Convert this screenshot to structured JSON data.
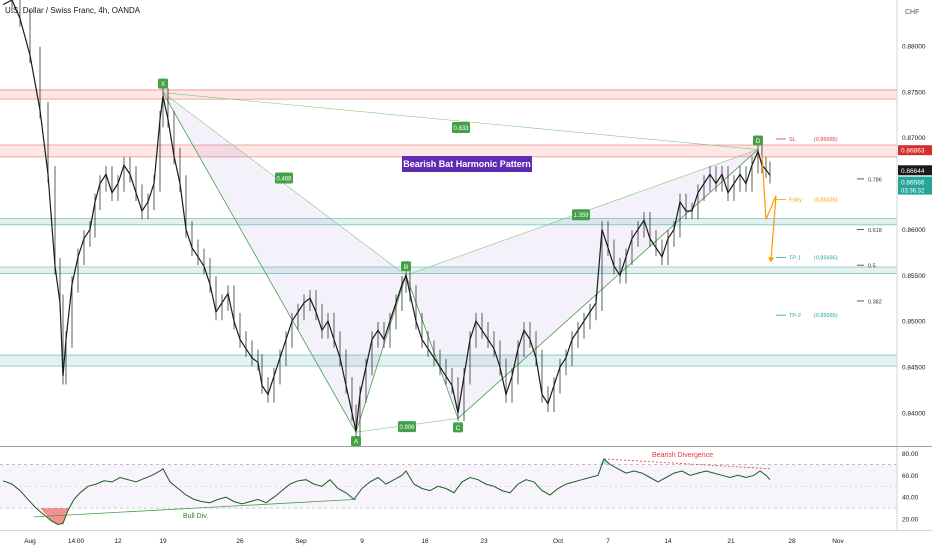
{
  "chart_data": {
    "type": "candlestick",
    "title": "U.S. Dollar / Swiss Franc, 4h, OANDA",
    "currency": "CHF",
    "pattern_title": "Bearish Bat Harmonic Pattern",
    "price_axis": {
      "ylim": [
        0.8365,
        0.885
      ],
      "ticks": [
        "0.88000",
        "0.87500",
        "0.87000",
        "0.86500",
        "0.86000",
        "0.85500",
        "0.85000",
        "0.84500",
        "0.84000"
      ],
      "tick_values": [
        0.88,
        0.875,
        0.87,
        0.865,
        0.86,
        0.855,
        0.85,
        0.845,
        0.84
      ],
      "last_price": "0.86586",
      "last_price_timer": "03:36:32",
      "price_tag": "0.86644",
      "sl_tag": "0.86863"
    },
    "time_axis": {
      "ticks": [
        "Aug",
        "14:00",
        "12",
        "19",
        "26",
        "Sep",
        "9",
        "16",
        "23",
        "Oct",
        "7",
        "14",
        "21",
        "28",
        "Nov"
      ],
      "tick_t": [
        30,
        76,
        118,
        163,
        240,
        301,
        362,
        425,
        484,
        558,
        608,
        668,
        731,
        792,
        838
      ]
    },
    "pattern_points": [
      {
        "label": "X",
        "t": 163,
        "price": 0.8749
      },
      {
        "label": "A",
        "t": 356,
        "price": 0.8379
      },
      {
        "label": "B",
        "t": 406,
        "price": 0.855
      },
      {
        "label": "C",
        "t": 458,
        "price": 0.8394
      },
      {
        "label": "D",
        "t": 758,
        "price": 0.8687
      }
    ],
    "ratios": [
      {
        "label": "0.833",
        "t": 461,
        "price": 0.8711
      },
      {
        "label": "0.468",
        "t": 284,
        "price": 0.8656
      },
      {
        "label": "0.906",
        "t": 407,
        "price": 0.8385
      },
      {
        "label": "1.359",
        "t": 581,
        "price": 0.8616
      }
    ],
    "zones": [
      {
        "price_low": 0.8742,
        "price_high": 0.8752,
        "color": "red"
      },
      {
        "price_low": 0.8679,
        "price_high": 0.8692,
        "color": "red"
      },
      {
        "price_low": 0.8605,
        "price_high": 0.8612,
        "color": "teal"
      },
      {
        "price_low": 0.8552,
        "price_high": 0.8559,
        "color": "teal"
      },
      {
        "price_low": 0.8451,
        "price_high": 0.8463,
        "color": "teal"
      }
    ],
    "fib_levels": [
      {
        "label": "0.786",
        "price": 0.8655
      },
      {
        "label": "0.618",
        "price": 0.86
      },
      {
        "label": "0.5",
        "price": 0.8561
      },
      {
        "label": "0.382",
        "price": 0.8522
      }
    ],
    "trade_levels": [
      {
        "label": "SL",
        "value": "(0.86985)",
        "price": 0.86985,
        "color": "#e53935"
      },
      {
        "label": "Entry",
        "value": "(0.86325)",
        "price": 0.86325,
        "color": "#ff9800"
      },
      {
        "label": "TP-1",
        "value": "(0.85695)",
        "price": 0.85695,
        "color": "#26a69a"
      },
      {
        "label": "TP-2",
        "value": "(0.85065)",
        "price": 0.85065,
        "color": "#26a69a"
      }
    ],
    "price_path": [
      [
        3,
        0.8845
      ],
      [
        12,
        0.885
      ],
      [
        20,
        0.883
      ],
      [
        30,
        0.879
      ],
      [
        40,
        0.873
      ],
      [
        48,
        0.866
      ],
      [
        55,
        0.856
      ],
      [
        60,
        0.852
      ],
      [
        63,
        0.844
      ],
      [
        66,
        0.848
      ],
      [
        72,
        0.854
      ],
      [
        78,
        0.857
      ],
      [
        84,
        0.859
      ],
      [
        90,
        0.86
      ],
      [
        95,
        0.863
      ],
      [
        100,
        0.865
      ],
      [
        106,
        0.866
      ],
      [
        112,
        0.864
      ],
      [
        118,
        0.865
      ],
      [
        124,
        0.867
      ],
      [
        130,
        0.866
      ],
      [
        136,
        0.864
      ],
      [
        142,
        0.862
      ],
      [
        148,
        0.863
      ],
      [
        154,
        0.865
      ],
      [
        160,
        0.872
      ],
      [
        163,
        0.8745
      ],
      [
        168,
        0.872
      ],
      [
        174,
        0.868
      ],
      [
        180,
        0.865
      ],
      [
        186,
        0.86
      ],
      [
        192,
        0.858
      ],
      [
        198,
        0.857
      ],
      [
        204,
        0.856
      ],
      [
        210,
        0.854
      ],
      [
        216,
        0.851
      ],
      [
        222,
        0.852
      ],
      [
        228,
        0.853
      ],
      [
        234,
        0.85
      ],
      [
        240,
        0.848
      ],
      [
        246,
        0.847
      ],
      [
        252,
        0.846
      ],
      [
        258,
        0.8455
      ],
      [
        262,
        0.843
      ],
      [
        268,
        0.842
      ],
      [
        274,
        0.844
      ],
      [
        280,
        0.846
      ],
      [
        286,
        0.848
      ],
      [
        292,
        0.85
      ],
      [
        298,
        0.851
      ],
      [
        304,
        0.852
      ],
      [
        310,
        0.8525
      ],
      [
        316,
        0.851
      ],
      [
        322,
        0.849
      ],
      [
        328,
        0.85
      ],
      [
        334,
        0.848
      ],
      [
        340,
        0.846
      ],
      [
        346,
        0.843
      ],
      [
        352,
        0.84
      ],
      [
        356,
        0.838
      ],
      [
        360,
        0.842
      ],
      [
        366,
        0.845
      ],
      [
        372,
        0.848
      ],
      [
        378,
        0.849
      ],
      [
        384,
        0.848
      ],
      [
        390,
        0.85
      ],
      [
        396,
        0.852
      ],
      [
        402,
        0.854
      ],
      [
        406,
        0.855
      ],
      [
        410,
        0.853
      ],
      [
        416,
        0.85
      ],
      [
        422,
        0.848
      ],
      [
        428,
        0.847
      ],
      [
        434,
        0.846
      ],
      [
        440,
        0.845
      ],
      [
        446,
        0.844
      ],
      [
        452,
        0.843
      ],
      [
        458,
        0.84
      ],
      [
        464,
        0.844
      ],
      [
        470,
        0.848
      ],
      [
        476,
        0.85
      ],
      [
        482,
        0.849
      ],
      [
        488,
        0.848
      ],
      [
        494,
        0.847
      ],
      [
        500,
        0.845
      ],
      [
        506,
        0.842
      ],
      [
        512,
        0.844
      ],
      [
        518,
        0.847
      ],
      [
        524,
        0.849
      ],
      [
        530,
        0.848
      ],
      [
        536,
        0.846
      ],
      [
        542,
        0.842
      ],
      [
        548,
        0.841
      ],
      [
        554,
        0.843
      ],
      [
        560,
        0.845
      ],
      [
        566,
        0.846
      ],
      [
        572,
        0.848
      ],
      [
        578,
        0.849
      ],
      [
        584,
        0.85
      ],
      [
        590,
        0.851
      ],
      [
        596,
        0.852
      ],
      [
        602,
        0.86
      ],
      [
        608,
        0.858
      ],
      [
        614,
        0.856
      ],
      [
        620,
        0.855
      ],
      [
        626,
        0.857
      ],
      [
        632,
        0.859
      ],
      [
        638,
        0.86
      ],
      [
        644,
        0.861
      ],
      [
        650,
        0.859
      ],
      [
        656,
        0.858
      ],
      [
        662,
        0.857
      ],
      [
        668,
        0.859
      ],
      [
        674,
        0.86
      ],
      [
        680,
        0.863
      ],
      [
        686,
        0.862
      ],
      [
        692,
        0.862
      ],
      [
        698,
        0.864
      ],
      [
        704,
        0.865
      ],
      [
        710,
        0.866
      ],
      [
        716,
        0.865
      ],
      [
        722,
        0.866
      ],
      [
        728,
        0.864
      ],
      [
        734,
        0.865
      ],
      [
        740,
        0.866
      ],
      [
        746,
        0.865
      ],
      [
        752,
        0.867
      ],
      [
        758,
        0.8685
      ],
      [
        762,
        0.867
      ],
      [
        766,
        0.8665
      ],
      [
        770,
        0.8659
      ]
    ],
    "rsi": {
      "ylim": [
        10,
        85
      ],
      "ticks": [
        "80.00",
        "60.00",
        "40.00",
        "20.00"
      ],
      "tick_values": [
        80,
        60,
        40,
        20
      ],
      "band": [
        30,
        70
      ],
      "bull_div_label": "Bull Div.",
      "bear_div_label": "Bearish Divergence",
      "values": [
        [
          3,
          55
        ],
        [
          12,
          52
        ],
        [
          20,
          46
        ],
        [
          28,
          38
        ],
        [
          36,
          30
        ],
        [
          44,
          24
        ],
        [
          52,
          18
        ],
        [
          58,
          15
        ],
        [
          63,
          16
        ],
        [
          68,
          28
        ],
        [
          74,
          38
        ],
        [
          80,
          44
        ],
        [
          88,
          50
        ],
        [
          96,
          52
        ],
        [
          104,
          55
        ],
        [
          112,
          54
        ],
        [
          120,
          58
        ],
        [
          128,
          56
        ],
        [
          136,
          54
        ],
        [
          144,
          57
        ],
        [
          152,
          60
        ],
        [
          160,
          64
        ],
        [
          163,
          66
        ],
        [
          170,
          54
        ],
        [
          178,
          48
        ],
        [
          186,
          42
        ],
        [
          194,
          38
        ],
        [
          202,
          36
        ],
        [
          210,
          35
        ],
        [
          218,
          38
        ],
        [
          226,
          40
        ],
        [
          234,
          36
        ],
        [
          242,
          34
        ],
        [
          250,
          36
        ],
        [
          258,
          38
        ],
        [
          266,
          35
        ],
        [
          274,
          40
        ],
        [
          282,
          46
        ],
        [
          290,
          52
        ],
        [
          298,
          55
        ],
        [
          306,
          56
        ],
        [
          314,
          52
        ],
        [
          322,
          50
        ],
        [
          330,
          56
        ],
        [
          338,
          48
        ],
        [
          346,
          44
        ],
        [
          354,
          38
        ],
        [
          362,
          48
        ],
        [
          370,
          54
        ],
        [
          378,
          58
        ],
        [
          386,
          52
        ],
        [
          394,
          56
        ],
        [
          402,
          60
        ],
        [
          406,
          64
        ],
        [
          414,
          52
        ],
        [
          422,
          48
        ],
        [
          430,
          46
        ],
        [
          438,
          50
        ],
        [
          446,
          48
        ],
        [
          454,
          44
        ],
        [
          462,
          54
        ],
        [
          470,
          58
        ],
        [
          478,
          56
        ],
        [
          486,
          52
        ],
        [
          494,
          50
        ],
        [
          502,
          46
        ],
        [
          510,
          44
        ],
        [
          518,
          52
        ],
        [
          526,
          56
        ],
        [
          534,
          54
        ],
        [
          542,
          46
        ],
        [
          550,
          42
        ],
        [
          558,
          48
        ],
        [
          566,
          52
        ],
        [
          574,
          54
        ],
        [
          582,
          56
        ],
        [
          590,
          58
        ],
        [
          598,
          60
        ],
        [
          604,
          75
        ],
        [
          610,
          70
        ],
        [
          618,
          66
        ],
        [
          626,
          62
        ],
        [
          634,
          64
        ],
        [
          642,
          62
        ],
        [
          650,
          58
        ],
        [
          658,
          54
        ],
        [
          666,
          58
        ],
        [
          674,
          62
        ],
        [
          682,
          64
        ],
        [
          690,
          60
        ],
        [
          698,
          62
        ],
        [
          706,
          64
        ],
        [
          714,
          62
        ],
        [
          722,
          60
        ],
        [
          730,
          58
        ],
        [
          738,
          60
        ],
        [
          746,
          58
        ],
        [
          754,
          60
        ],
        [
          760,
          64
        ],
        [
          766,
          60
        ],
        [
          770,
          56
        ]
      ]
    }
  }
}
